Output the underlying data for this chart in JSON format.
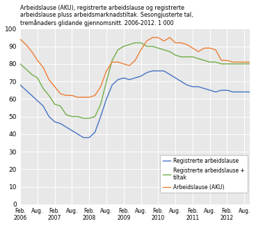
{
  "title": "Arbeidslause (AKU), registrerte arbeidslause og registrerte\narbeidslause pluss arbeidsmarknadstiltak. Sesongjusterte tal,\ntremånaders glidande gjennomsnitt. 2006-2012. 1 000",
  "ylim": [
    0,
    100
  ],
  "yticks": [
    0,
    10,
    20,
    30,
    40,
    50,
    60,
    70,
    80,
    90,
    100
  ],
  "blue_color": "#4472C4",
  "green_color": "#70AD47",
  "orange_color": "#ED7D31",
  "background_color": "#E8E8E8",
  "legend_labels": [
    "Registrerte arbeidslause",
    "Registrerte arbeidslause +\ntiltak",
    "Arbeidslause (AKU)"
  ],
  "xtick_labels": [
    "Feb.\n2006",
    "Aug.",
    "Feb.\n2007",
    "Aug.",
    "Feb.\n2008",
    "Aug.",
    "Feb.\n2009",
    "Aug.",
    "Feb.\n2010",
    "Aug.",
    "Feb.\n2011",
    "Aug.",
    "Feb.\n2012",
    "Aug."
  ],
  "blue_data": [
    68,
    65,
    62,
    59,
    56,
    50,
    47,
    46,
    44,
    42,
    40,
    38,
    38,
    41,
    50,
    60,
    68,
    71,
    72,
    71,
    72,
    73,
    75,
    76,
    76,
    76,
    74,
    72,
    70,
    68,
    67,
    67,
    66,
    65,
    64,
    65,
    65,
    64,
    64,
    64,
    64
  ],
  "green_data": [
    80,
    77,
    74,
    72,
    66,
    62,
    57,
    56,
    51,
    50,
    50,
    49,
    49,
    50,
    57,
    70,
    82,
    88,
    90,
    91,
    92,
    92,
    90,
    90,
    89,
    88,
    87,
    85,
    84,
    84,
    84,
    83,
    82,
    81,
    81,
    80,
    80,
    80,
    80,
    80,
    80
  ],
  "orange_data": [
    94,
    91,
    87,
    82,
    78,
    71,
    67,
    63,
    62,
    62,
    61,
    61,
    61,
    62,
    67,
    76,
    81,
    81,
    80,
    79,
    82,
    88,
    93,
    95,
    95,
    93,
    95,
    92,
    92,
    91,
    89,
    87,
    89,
    89,
    88,
    82,
    82,
    81,
    81,
    81,
    81
  ]
}
